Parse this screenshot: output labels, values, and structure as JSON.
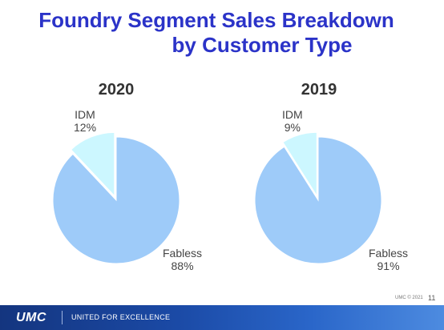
{
  "slide": {
    "title_line1": "Foundry Segment Sales Breakdown",
    "title_line2": "by Customer Type",
    "page_number": "11",
    "copyright": "UMC © 2021"
  },
  "footer": {
    "logo_text": "UMC",
    "tagline": "UNITED FOR EXCELLENCE",
    "accent_color": "#1b4aa6"
  },
  "chart_data": [
    {
      "type": "pie",
      "title": "2020",
      "slices": [
        {
          "label": "IDM",
          "value": 12,
          "display": "12%",
          "color": "#ccf7ff"
        },
        {
          "label": "Fabless",
          "value": 88,
          "display": "88%",
          "color": "#9ecbf9"
        }
      ]
    },
    {
      "type": "pie",
      "title": "2019",
      "slices": [
        {
          "label": "IDM",
          "value": 9,
          "display": "9%",
          "color": "#ccf7ff"
        },
        {
          "label": "Fabless",
          "value": 91,
          "display": "91%",
          "color": "#9ecbf9"
        }
      ]
    }
  ]
}
